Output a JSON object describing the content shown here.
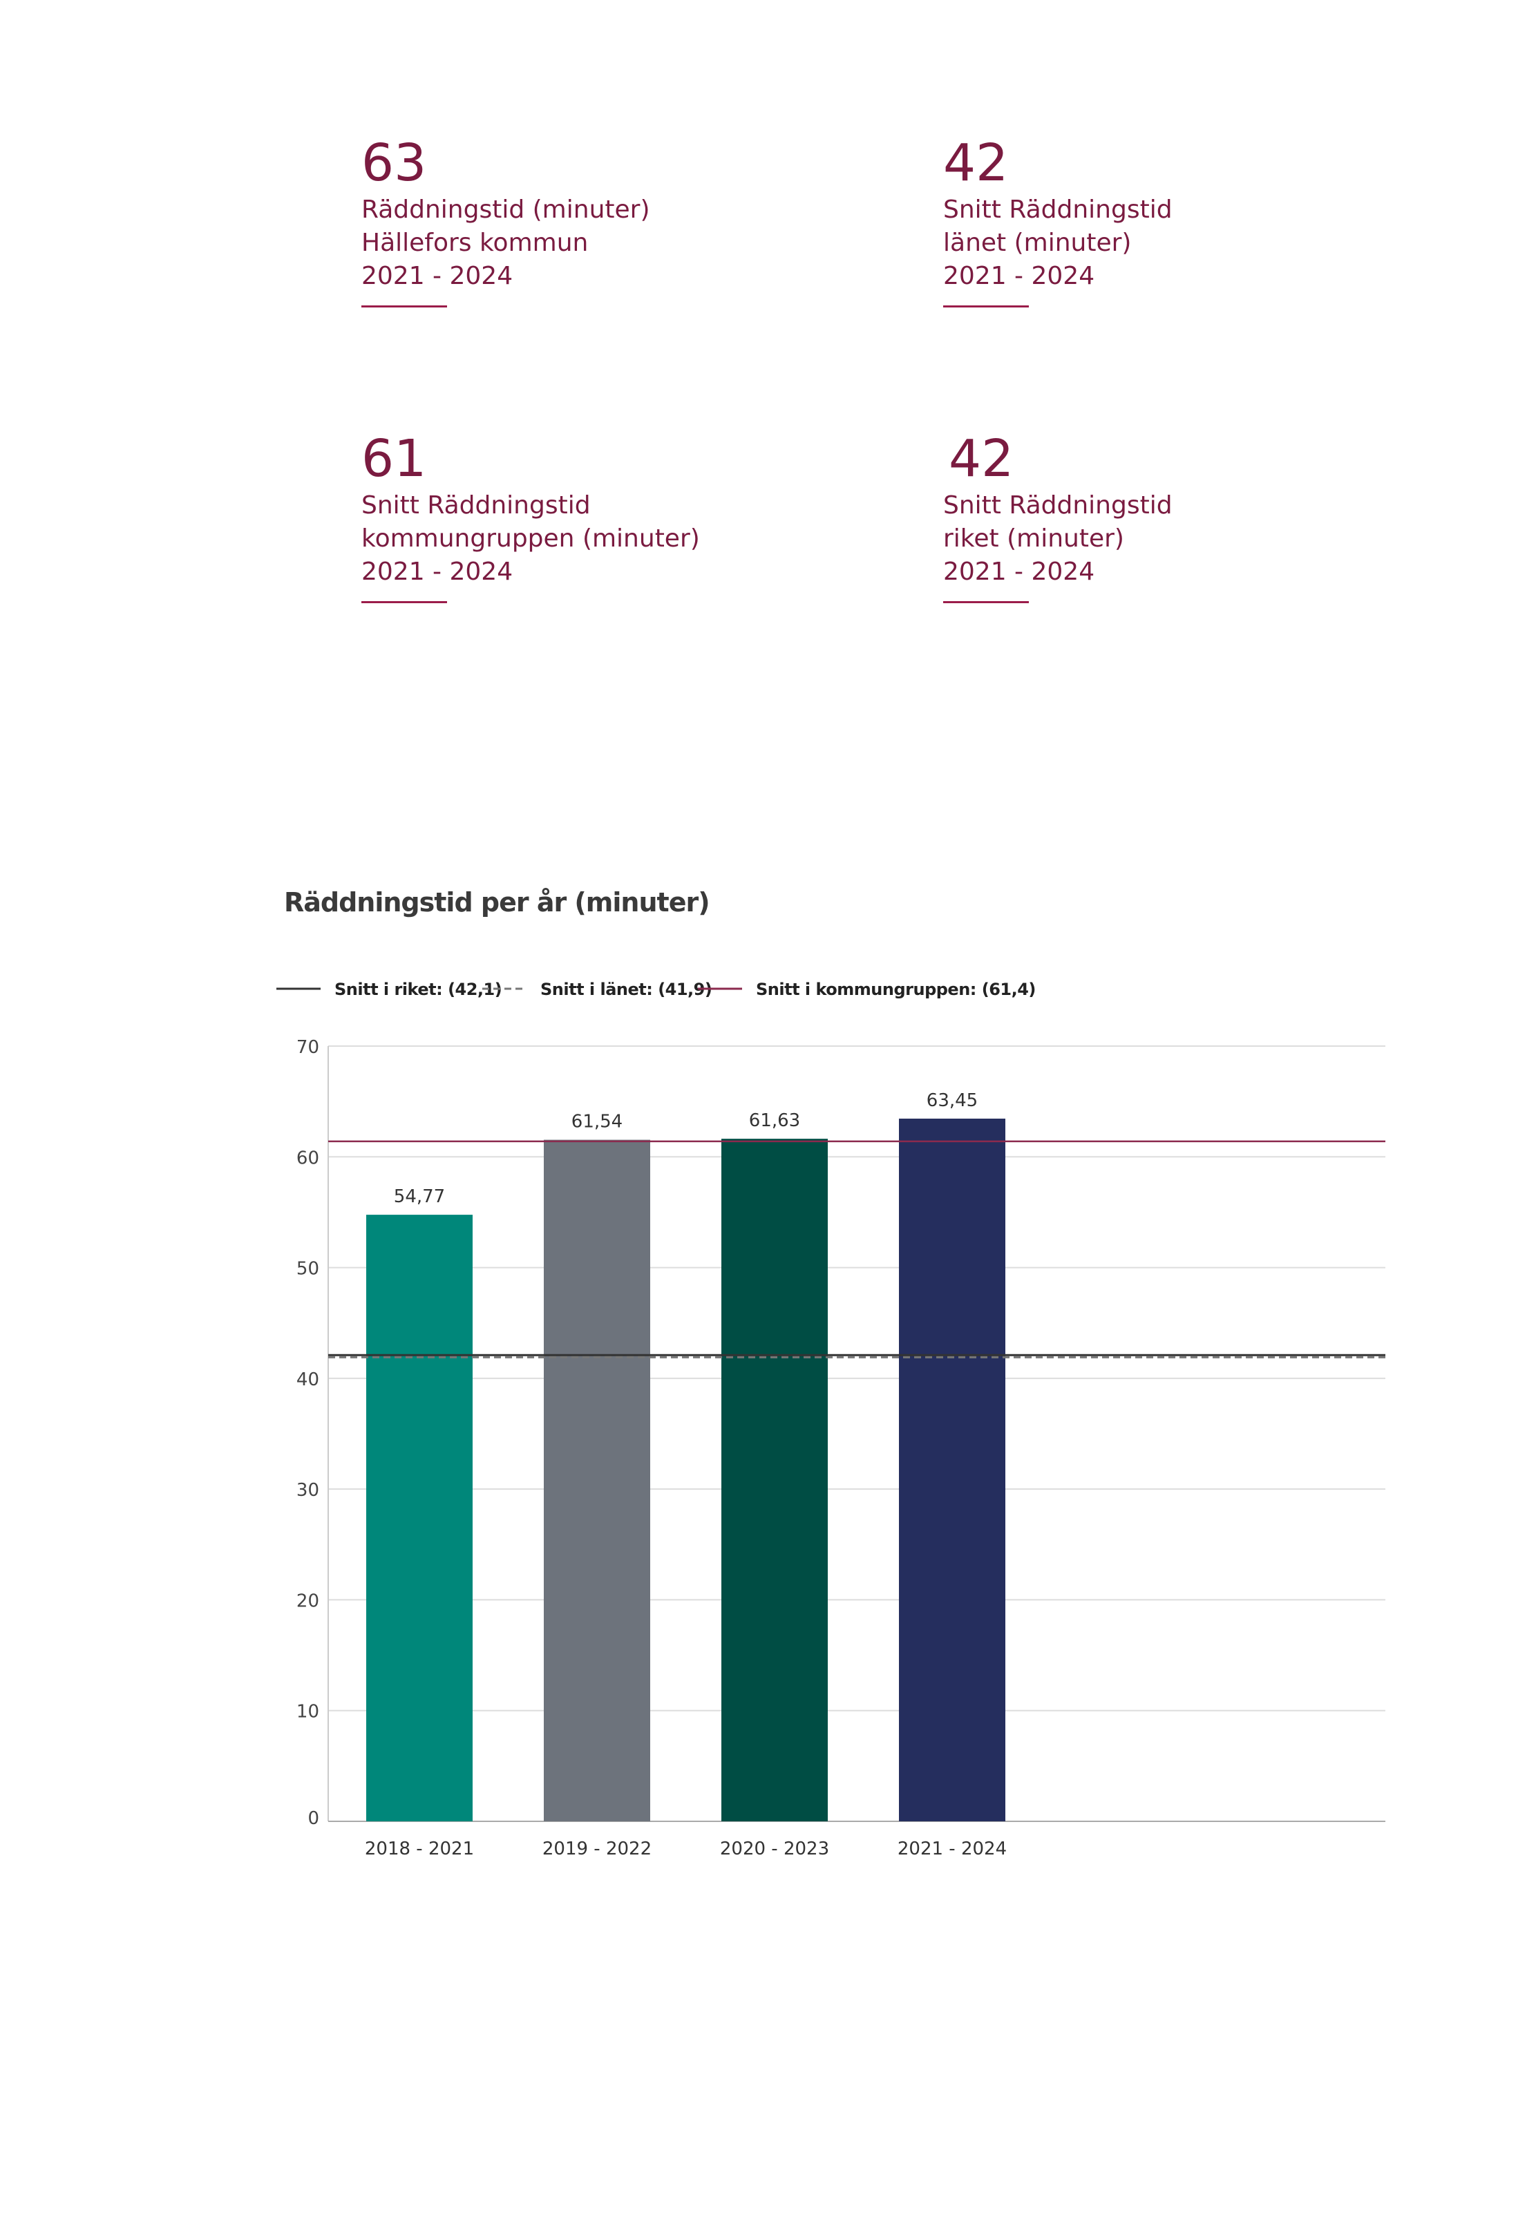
{
  "kpis": [
    {
      "value": "63",
      "label": "Räddningstid (minuter)\nHällefors kommun\n2021 - 2024"
    },
    {
      "value": "42",
      "label": "Snitt Räddningstid\nlänet (minuter)\n2021 - 2024"
    },
    {
      "value": "61",
      "label": "Snitt Räddningstid\nkommungruppen (minuter)\n2021 - 2024"
    },
    {
      "value": "42",
      "label": "Snitt Räddningstid\nriket (minuter)\n2021 - 2024"
    }
  ],
  "colors": {
    "kpi_text": "#7a1b40",
    "bars": [
      "#00877a",
      "#6d737c",
      "#004d44",
      "#252e5e"
    ],
    "riket_line": "#333333",
    "lanet_line": "#777777",
    "kommungruppen_line": "#8b2a4e",
    "grid": "#dddddd"
  },
  "chart_data": {
    "type": "bar",
    "title": "Räddningstid per år (minuter)",
    "categories": [
      "2018 - 2021",
      "2019 - 2022",
      "2020 - 2023",
      "2021 - 2024"
    ],
    "values": [
      54.77,
      61.54,
      61.63,
      63.45
    ],
    "value_labels": [
      "54,77",
      "61,54",
      "61,63",
      "63,45"
    ],
    "ylim": [
      0,
      70
    ],
    "yticks": [
      0,
      10,
      20,
      30,
      40,
      50,
      60,
      70
    ],
    "grid": true,
    "legend_position": "top-left",
    "reference_lines": [
      {
        "name": "Snitt i riket: (42,1)",
        "value": 42.1,
        "style": "solid"
      },
      {
        "name": "Snitt i länet: (41,9)",
        "value": 41.9,
        "style": "dashed"
      },
      {
        "name": "Snitt i kommungruppen: (61,4)",
        "value": 61.4,
        "style": "solid"
      }
    ]
  }
}
